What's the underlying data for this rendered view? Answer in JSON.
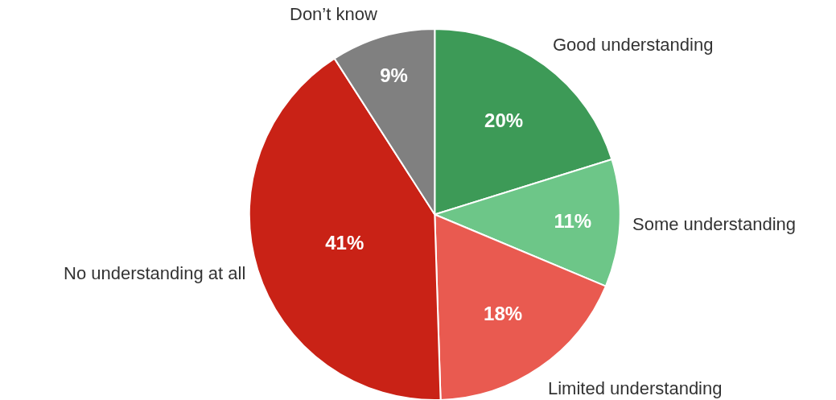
{
  "chart_data": {
    "type": "pie",
    "categories": [
      "Good understanding",
      "Some understanding",
      "Limited understanding",
      "No understanding at all",
      "Don’t know"
    ],
    "values": [
      20,
      11,
      18,
      41,
      9
    ],
    "colors": [
      "#3d9a57",
      "#6dc688",
      "#e95a50",
      "#c92216",
      "#808080"
    ],
    "value_labels": [
      "20%",
      "11%",
      "18%",
      "41%",
      "9%"
    ],
    "legend": false
  }
}
